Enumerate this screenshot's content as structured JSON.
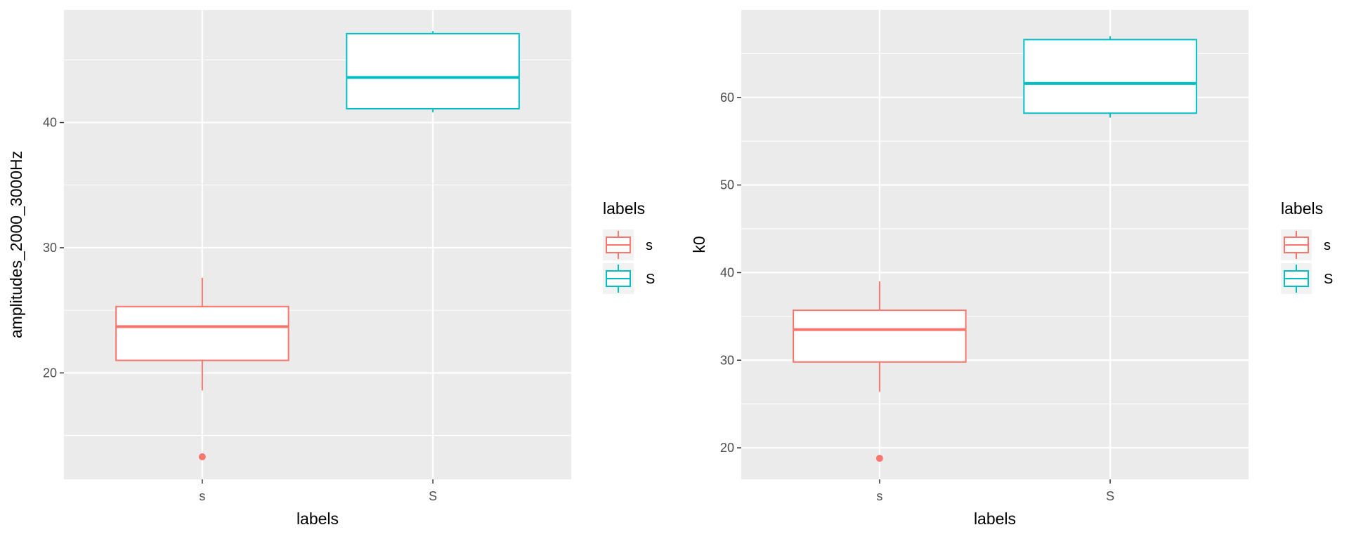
{
  "chart_data": [
    {
      "type": "box",
      "xlabel": "labels",
      "ylabel": "amplitudes_2000_3000Hz",
      "ylim": [
        11.5,
        49
      ],
      "yticks": [
        20,
        30,
        40
      ],
      "grid": true,
      "legend": {
        "title": "labels",
        "position": "right",
        "entries": [
          "s",
          "S"
        ]
      },
      "categories": [
        "s",
        "S"
      ],
      "boxes": [
        {
          "category": "s",
          "color": "#F8766D",
          "lower_whisker": 18.6,
          "q1": 21.0,
          "median": 23.7,
          "q3": 25.3,
          "upper_whisker": 27.6,
          "outliers": [
            13.3
          ]
        },
        {
          "category": "S",
          "color": "#00BFC4",
          "lower_whisker": 40.8,
          "q1": 41.1,
          "median": 43.6,
          "q3": 47.1,
          "upper_whisker": 47.3,
          "outliers": []
        }
      ]
    },
    {
      "type": "box",
      "xlabel": "labels",
      "ylabel": "k0",
      "ylim": [
        16.4,
        70
      ],
      "yticks": [
        20,
        30,
        40,
        50,
        60
      ],
      "grid": true,
      "legend": {
        "title": "labels",
        "position": "right",
        "entries": [
          "s",
          "S"
        ]
      },
      "categories": [
        "s",
        "S"
      ],
      "boxes": [
        {
          "category": "s",
          "color": "#F8766D",
          "lower_whisker": 26.4,
          "q1": 29.8,
          "median": 33.5,
          "q3": 35.7,
          "upper_whisker": 39.0,
          "outliers": [
            18.8
          ]
        },
        {
          "category": "S",
          "color": "#00BFC4",
          "lower_whisker": 57.7,
          "q1": 58.2,
          "median": 61.6,
          "q3": 66.6,
          "upper_whisker": 67.0,
          "outliers": []
        }
      ]
    }
  ]
}
